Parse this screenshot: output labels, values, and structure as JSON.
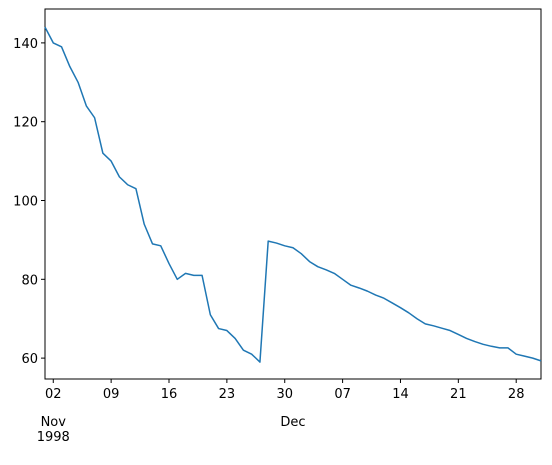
{
  "chart_data": {
    "type": "line",
    "x": [
      "1998-11-01",
      "1998-11-02",
      "1998-11-03",
      "1998-11-04",
      "1998-11-05",
      "1998-11-06",
      "1998-11-07",
      "1998-11-08",
      "1998-11-09",
      "1998-11-10",
      "1998-11-11",
      "1998-11-12",
      "1998-11-13",
      "1998-11-14",
      "1998-11-15",
      "1998-11-16",
      "1998-11-17",
      "1998-11-18",
      "1998-11-19",
      "1998-11-20",
      "1998-11-21",
      "1998-11-22",
      "1998-11-23",
      "1998-11-24",
      "1998-11-25",
      "1998-11-26",
      "1998-11-27",
      "1998-11-28",
      "1998-11-29",
      "1998-11-30",
      "1998-12-01",
      "1998-12-02",
      "1998-12-03",
      "1998-12-04",
      "1998-12-05",
      "1998-12-06",
      "1998-12-07",
      "1998-12-08",
      "1998-12-09",
      "1998-12-10",
      "1998-12-11",
      "1998-12-12",
      "1998-12-13",
      "1998-12-14",
      "1998-12-15",
      "1998-12-16",
      "1998-12-17",
      "1998-12-18",
      "1998-12-19",
      "1998-12-20",
      "1998-12-21",
      "1998-12-22",
      "1998-12-23",
      "1998-12-24",
      "1998-12-25",
      "1998-12-26",
      "1998-12-27",
      "1998-12-28",
      "1998-12-29",
      "1998-12-30",
      "1998-12-31"
    ],
    "series": [
      {
        "color": "#1f77b4",
        "values": [
          144,
          140,
          139,
          134,
          130,
          124,
          121,
          112,
          110,
          106,
          104,
          103,
          94,
          89,
          88.5,
          84,
          80,
          81.5,
          81,
          81,
          71,
          67.5,
          67,
          65,
          62,
          61,
          59,
          89.7,
          89.2,
          88.5,
          88,
          86.5,
          84.5,
          83.2,
          82.4,
          81.5,
          80,
          78.5,
          77.8,
          77,
          76,
          75.2,
          74,
          72.8,
          71.5,
          70,
          68.7,
          68.2,
          67.6,
          67,
          66,
          65,
          64.2,
          63.5,
          63,
          62.6,
          62.6,
          61,
          60.5,
          60,
          59.3
        ]
      }
    ],
    "xlim": [
      "1998-11-01",
      "1998-12-31"
    ],
    "xticks": [
      {
        "value": "1998-11-02",
        "label": "02"
      },
      {
        "value": "1998-11-09",
        "label": "09"
      },
      {
        "value": "1998-11-16",
        "label": "16"
      },
      {
        "value": "1998-11-23",
        "label": "23"
      },
      {
        "value": "1998-11-30",
        "label": "30"
      },
      {
        "value": "1998-12-07",
        "label": "07"
      },
      {
        "value": "1998-12-14",
        "label": "14"
      },
      {
        "value": "1998-12-21",
        "label": "21"
      },
      {
        "value": "1998-12-28",
        "label": "28"
      }
    ],
    "month_ticks": [
      {
        "value": "1998-11-02",
        "label": "Nov"
      },
      {
        "value": "1998-12-01",
        "label": "Dec"
      }
    ],
    "year_label": "1998",
    "ylim": [
      54.7,
      148.6
    ],
    "yticks": [
      60,
      80,
      100,
      120,
      140
    ]
  }
}
